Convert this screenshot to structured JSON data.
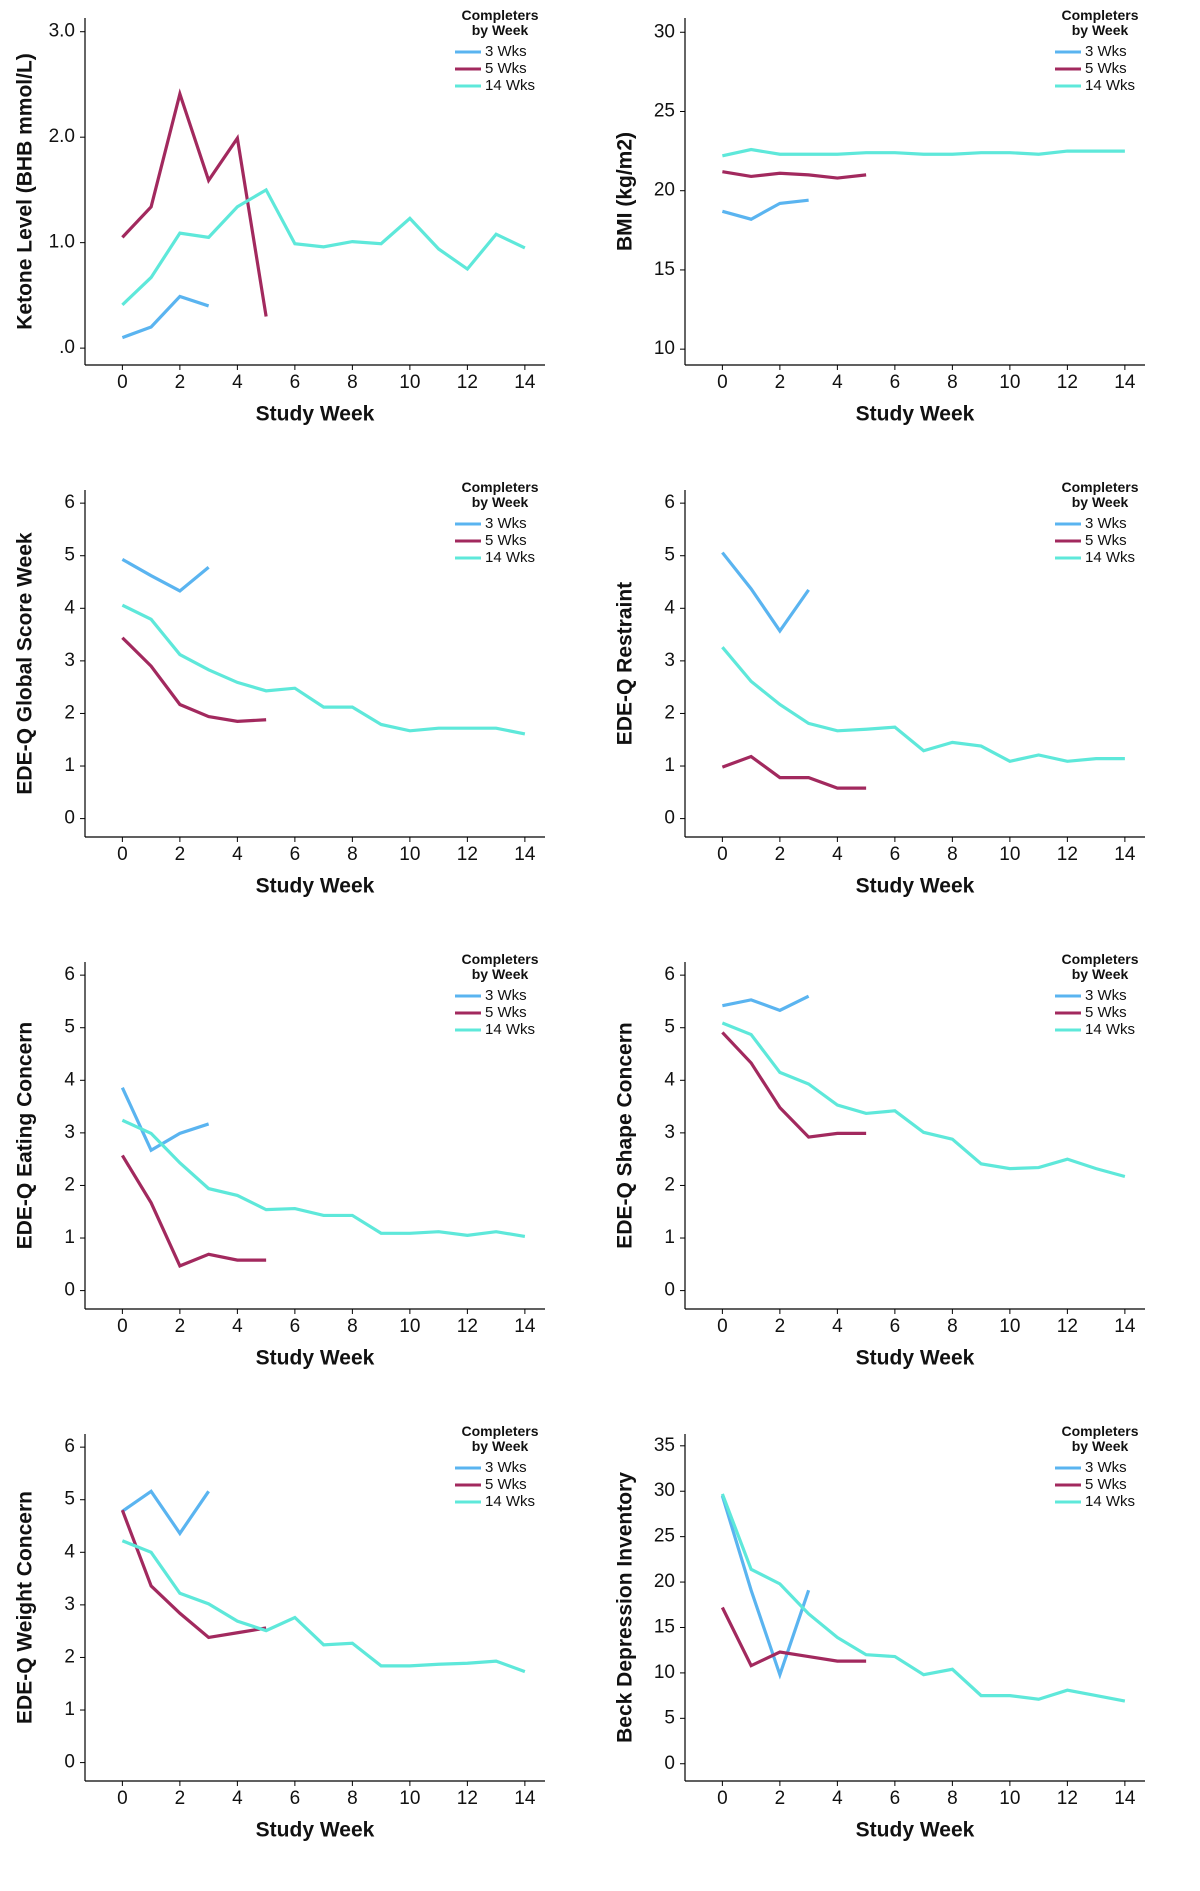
{
  "chart_data": [
    {
      "type": "line",
      "xlabel": "Study Week",
      "ylabel": "Ketone Level (BHB mmol/L)",
      "legend_title": "Completers by Week",
      "x": [
        0,
        1,
        2,
        3,
        4,
        5,
        6,
        7,
        8,
        9,
        10,
        11,
        12,
        13,
        14
      ],
      "xlim": [
        -1.3,
        14.7
      ],
      "xticks": [
        0,
        2,
        4,
        6,
        8,
        10,
        12,
        14
      ],
      "ylim": [
        -0.16,
        3.13
      ],
      "yticks": [
        {
          "value": 0,
          "label": ".0"
        },
        {
          "value": 1,
          "label": "1.0"
        },
        {
          "value": 2,
          "label": "2.0"
        },
        {
          "value": 3,
          "label": "3.0"
        }
      ],
      "series": [
        {
          "name": "3 Wks",
          "color": "#5ab4f0",
          "values": [
            0.1,
            0.2,
            0.49,
            0.4,
            null,
            null,
            null,
            null,
            null,
            null,
            null,
            null,
            null,
            null,
            null
          ]
        },
        {
          "name": "5 Wks",
          "color": "#a2295e",
          "values": [
            1.05,
            1.34,
            2.41,
            1.59,
            1.99,
            0.3,
            null,
            null,
            null,
            null,
            null,
            null,
            null,
            null,
            null
          ]
        },
        {
          "name": "14 Wks",
          "color": "#5ee8da",
          "values": [
            0.41,
            0.67,
            1.09,
            1.05,
            1.34,
            1.5,
            0.99,
            0.96,
            1.01,
            0.99,
            1.23,
            0.94,
            0.75,
            1.08,
            0.95
          ]
        }
      ]
    },
    {
      "type": "line",
      "xlabel": "Study Week",
      "ylabel": "BMI (kg/m2)",
      "legend_title": "Completers by Week",
      "x": [
        0,
        1,
        2,
        3,
        4,
        5,
        6,
        7,
        8,
        9,
        10,
        11,
        12,
        13,
        14
      ],
      "xlim": [
        -1.3,
        14.7
      ],
      "xticks": [
        0,
        2,
        4,
        6,
        8,
        10,
        12,
        14
      ],
      "ylim": [
        9.0,
        30.9
      ],
      "yticks": [
        10,
        15,
        20,
        25,
        30
      ],
      "series": [
        {
          "name": "3 Wks",
          "color": "#5ab4f0",
          "values": [
            18.7,
            18.2,
            19.2,
            19.4,
            null,
            null,
            null,
            null,
            null,
            null,
            null,
            null,
            null,
            null,
            null
          ]
        },
        {
          "name": "5 Wks",
          "color": "#a2295e",
          "values": [
            21.2,
            20.9,
            21.1,
            21.0,
            20.8,
            21.0,
            null,
            null,
            null,
            null,
            null,
            null,
            null,
            null,
            null
          ]
        },
        {
          "name": "14 Wks",
          "color": "#5ee8da",
          "values": [
            22.2,
            22.6,
            22.3,
            22.3,
            22.3,
            22.4,
            22.4,
            22.3,
            22.3,
            22.4,
            22.4,
            22.3,
            22.5,
            22.5,
            22.5
          ]
        }
      ]
    },
    {
      "type": "line",
      "xlabel": "Study Week",
      "ylabel": "EDE-Q Global Score Week",
      "legend_title": "Completers by Week",
      "x": [
        0,
        1,
        2,
        3,
        4,
        5,
        6,
        7,
        8,
        9,
        10,
        11,
        12,
        13,
        14
      ],
      "xlim": [
        -1.3,
        14.7
      ],
      "xticks": [
        0,
        2,
        4,
        6,
        8,
        10,
        12,
        14
      ],
      "ylim": [
        -0.35,
        6.25
      ],
      "yticks": [
        0,
        1,
        2,
        3,
        4,
        5,
        6
      ],
      "series": [
        {
          "name": "3 Wks",
          "color": "#5ab4f0",
          "values": [
            4.93,
            4.62,
            4.33,
            4.78,
            null,
            null,
            null,
            null,
            null,
            null,
            null,
            null,
            null,
            null,
            null
          ]
        },
        {
          "name": "5 Wks",
          "color": "#a2295e",
          "values": [
            3.44,
            2.9,
            2.17,
            1.94,
            1.85,
            1.88,
            null,
            null,
            null,
            null,
            null,
            null,
            null,
            null,
            null
          ]
        },
        {
          "name": "14 Wks",
          "color": "#5ee8da",
          "values": [
            4.06,
            3.79,
            3.12,
            2.83,
            2.59,
            2.43,
            2.48,
            2.12,
            2.12,
            1.79,
            1.67,
            1.72,
            1.72,
            1.72,
            1.61
          ]
        }
      ]
    },
    {
      "type": "line",
      "xlabel": "Study Week",
      "ylabel": "EDE-Q Restraint",
      "legend_title": "Completers by Week",
      "x": [
        0,
        1,
        2,
        3,
        4,
        5,
        6,
        7,
        8,
        9,
        10,
        11,
        12,
        13,
        14
      ],
      "xlim": [
        -1.3,
        14.7
      ],
      "xticks": [
        0,
        2,
        4,
        6,
        8,
        10,
        12,
        14
      ],
      "ylim": [
        -0.35,
        6.25
      ],
      "yticks": [
        0,
        1,
        2,
        3,
        4,
        5,
        6
      ],
      "series": [
        {
          "name": "3 Wks",
          "color": "#5ab4f0",
          "values": [
            5.06,
            4.37,
            3.57,
            4.35,
            null,
            null,
            null,
            null,
            null,
            null,
            null,
            null,
            null,
            null,
            null
          ]
        },
        {
          "name": "5 Wks",
          "color": "#a2295e",
          "values": [
            0.98,
            1.18,
            0.78,
            0.78,
            0.58,
            0.58,
            null,
            null,
            null,
            null,
            null,
            null,
            null,
            null,
            null
          ]
        },
        {
          "name": "14 Wks",
          "color": "#5ee8da",
          "values": [
            3.26,
            2.61,
            2.17,
            1.81,
            1.67,
            1.7,
            1.74,
            1.29,
            1.45,
            1.38,
            1.09,
            1.21,
            1.09,
            1.14,
            1.14
          ]
        }
      ]
    },
    {
      "type": "line",
      "xlabel": "Study Week",
      "ylabel": "EDE-Q Eating Concern",
      "legend_title": "Completers by Week",
      "x": [
        0,
        1,
        2,
        3,
        4,
        5,
        6,
        7,
        8,
        9,
        10,
        11,
        12,
        13,
        14
      ],
      "xlim": [
        -1.3,
        14.7
      ],
      "xticks": [
        0,
        2,
        4,
        6,
        8,
        10,
        12,
        14
      ],
      "ylim": [
        -0.35,
        6.25
      ],
      "yticks": [
        0,
        1,
        2,
        3,
        4,
        5,
        6
      ],
      "series": [
        {
          "name": "3 Wks",
          "color": "#5ab4f0",
          "values": [
            3.86,
            2.67,
            2.99,
            3.17,
            null,
            null,
            null,
            null,
            null,
            null,
            null,
            null,
            null,
            null,
            null
          ]
        },
        {
          "name": "5 Wks",
          "color": "#a2295e",
          "values": [
            2.57,
            1.67,
            0.47,
            0.69,
            0.58,
            0.58,
            null,
            null,
            null,
            null,
            null,
            null,
            null,
            null,
            null
          ]
        },
        {
          "name": "14 Wks",
          "color": "#5ee8da",
          "values": [
            3.24,
            2.99,
            2.43,
            1.94,
            1.81,
            1.54,
            1.56,
            1.43,
            1.43,
            1.09,
            1.09,
            1.12,
            1.05,
            1.12,
            1.03
          ]
        }
      ]
    },
    {
      "type": "line",
      "xlabel": "Study Week",
      "ylabel": "EDE-Q Shape Concern",
      "legend_title": "Completers by Week",
      "x": [
        0,
        1,
        2,
        3,
        4,
        5,
        6,
        7,
        8,
        9,
        10,
        11,
        12,
        13,
        14
      ],
      "xlim": [
        -1.3,
        14.7
      ],
      "xticks": [
        0,
        2,
        4,
        6,
        8,
        10,
        12,
        14
      ],
      "ylim": [
        -0.35,
        6.25
      ],
      "yticks": [
        0,
        1,
        2,
        3,
        4,
        5,
        6
      ],
      "series": [
        {
          "name": "3 Wks",
          "color": "#5ab4f0",
          "values": [
            5.42,
            5.53,
            5.33,
            5.6,
            null,
            null,
            null,
            null,
            null,
            null,
            null,
            null,
            null,
            null,
            null
          ]
        },
        {
          "name": "5 Wks",
          "color": "#a2295e",
          "values": [
            4.91,
            4.33,
            3.48,
            2.92,
            2.99,
            2.99,
            null,
            null,
            null,
            null,
            null,
            null,
            null,
            null,
            null
          ]
        },
        {
          "name": "14 Wks",
          "color": "#5ee8da",
          "values": [
            5.09,
            4.87,
            4.15,
            3.93,
            3.53,
            3.37,
            3.42,
            3.01,
            2.88,
            2.41,
            2.32,
            2.34,
            2.5,
            2.32,
            2.17
          ]
        }
      ]
    },
    {
      "type": "line",
      "xlabel": "Study Week",
      "ylabel": "EDE-Q Weight Concern",
      "legend_title": "Completers by Week",
      "x": [
        0,
        1,
        2,
        3,
        4,
        5,
        6,
        7,
        8,
        9,
        10,
        11,
        12,
        13,
        14
      ],
      "xlim": [
        -1.3,
        14.7
      ],
      "xticks": [
        0,
        2,
        4,
        6,
        8,
        10,
        12,
        14
      ],
      "ylim": [
        -0.35,
        6.25
      ],
      "yticks": [
        0,
        1,
        2,
        3,
        4,
        5,
        6
      ],
      "series": [
        {
          "name": "3 Wks",
          "color": "#5ab4f0",
          "values": [
            4.78,
            5.16,
            4.36,
            5.16,
            null,
            null,
            null,
            null,
            null,
            null,
            null,
            null,
            null,
            null,
            null
          ]
        },
        {
          "name": "5 Wks",
          "color": "#a2295e",
          "values": [
            4.8,
            3.36,
            2.84,
            2.38,
            2.47,
            2.56,
            null,
            null,
            null,
            null,
            null,
            null,
            null,
            null,
            null
          ]
        },
        {
          "name": "14 Wks",
          "color": "#5ee8da",
          "values": [
            4.22,
            4.0,
            3.22,
            3.02,
            2.69,
            2.51,
            2.76,
            2.24,
            2.27,
            1.84,
            1.84,
            1.87,
            1.89,
            1.93,
            1.73
          ]
        }
      ]
    },
    {
      "type": "line",
      "xlabel": "Study Week",
      "ylabel": "Beck Depression Inventory",
      "legend_title": "Completers by Week",
      "x": [
        0,
        1,
        2,
        3,
        4,
        5,
        6,
        7,
        8,
        9,
        10,
        11,
        12,
        13,
        14
      ],
      "xlim": [
        -1.3,
        14.7
      ],
      "xticks": [
        0,
        2,
        4,
        6,
        8,
        10,
        12,
        14
      ],
      "ylim": [
        -1.9,
        36.3
      ],
      "yticks": [
        0,
        5,
        10,
        15,
        20,
        25,
        30,
        35
      ],
      "series": [
        {
          "name": "3 Wks",
          "color": "#5ab4f0",
          "values": [
            29.5,
            19.1,
            9.8,
            19.1,
            null,
            null,
            null,
            null,
            null,
            null,
            null,
            null,
            null,
            null,
            null
          ]
        },
        {
          "name": "5 Wks",
          "color": "#a2295e",
          "values": [
            17.2,
            10.8,
            12.3,
            11.8,
            11.3,
            11.3,
            null,
            null,
            null,
            null,
            null,
            null,
            null,
            null,
            null
          ]
        },
        {
          "name": "14 Wks",
          "color": "#5ee8da",
          "values": [
            29.7,
            21.4,
            19.8,
            16.5,
            13.9,
            12.0,
            11.8,
            9.8,
            10.4,
            7.5,
            7.5,
            7.1,
            8.1,
            7.5,
            6.9
          ]
        }
      ]
    }
  ]
}
